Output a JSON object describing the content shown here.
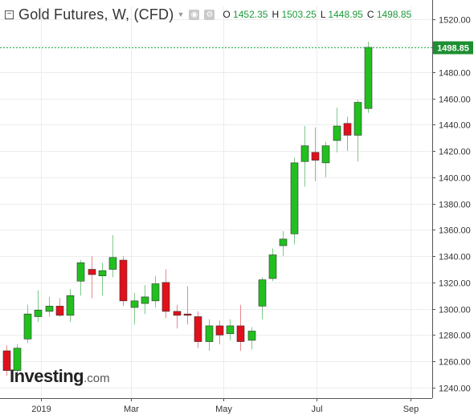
{
  "header": {
    "collapse_symbol": "−",
    "title": "Gold Futures, W,  (CFD)",
    "icons": [
      "visibility-icon",
      "settings-icon"
    ],
    "open_label": "O",
    "open_value": "1452.35",
    "high_label": "H",
    "high_value": "1503.25",
    "low_label": "L",
    "low_value": "1448.95",
    "close_label": "C",
    "close_value": "1498.85"
  },
  "logo": {
    "main": "Investing",
    "suffix": ".com"
  },
  "colors": {
    "up": "#22c01e",
    "down": "#e0111c",
    "grid": "#ececec",
    "axis": "#555555",
    "last_price_line": "#1eae3c",
    "last_price_badge": "#1e8f32"
  },
  "chart_data": {
    "type": "candlestick",
    "title": "Gold Futures, W,  (CFD)",
    "interval": "weekly",
    "y_axis": {
      "position": "right",
      "ticks": [
        1240,
        1260,
        1280,
        1300,
        1320,
        1340,
        1360,
        1380,
        1400,
        1420,
        1440,
        1460,
        1480,
        1500,
        1520
      ],
      "ylim": [
        1232,
        1530
      ]
    },
    "x_axis": {
      "ticks": [
        {
          "label": "2019",
          "date": "2019-01-01"
        },
        {
          "label": "Mar",
          "date": "2019-03-01"
        },
        {
          "label": "May",
          "date": "2019-05-01"
        },
        {
          "label": "Jul",
          "date": "2019-07-01"
        },
        {
          "label": "Sep",
          "date": "2019-09-01"
        }
      ],
      "xlim": [
        "2018-12-05",
        "2019-09-15"
      ]
    },
    "grid": true,
    "last_price": {
      "value": 1498.85,
      "label": "1498.85"
    },
    "candles": [
      {
        "date": "2018-12-09",
        "open": 1268,
        "high": 1272,
        "low": 1249,
        "close": 1253
      },
      {
        "date": "2018-12-16",
        "open": 1253,
        "high": 1273,
        "low": 1251,
        "close": 1270
      },
      {
        "date": "2018-12-23",
        "open": 1277,
        "high": 1303,
        "low": 1274,
        "close": 1296
      },
      {
        "date": "2018-12-30",
        "open": 1294,
        "high": 1314,
        "low": 1290,
        "close": 1299
      },
      {
        "date": "2019-01-06",
        "open": 1298,
        "high": 1309,
        "low": 1294,
        "close": 1302
      },
      {
        "date": "2019-01-13",
        "open": 1302,
        "high": 1308,
        "low": 1294,
        "close": 1295
      },
      {
        "date": "2019-01-20",
        "open": 1295,
        "high": 1315,
        "low": 1290,
        "close": 1310
      },
      {
        "date": "2019-01-27",
        "open": 1321,
        "high": 1337,
        "low": 1310,
        "close": 1335
      },
      {
        "date": "2019-02-03",
        "open": 1330,
        "high": 1340,
        "low": 1308,
        "close": 1326
      },
      {
        "date": "2019-02-10",
        "open": 1325,
        "high": 1335,
        "low": 1310,
        "close": 1329
      },
      {
        "date": "2019-02-17",
        "open": 1330,
        "high": 1356,
        "low": 1324,
        "close": 1339
      },
      {
        "date": "2019-02-24",
        "open": 1337,
        "high": 1340,
        "low": 1302,
        "close": 1306
      },
      {
        "date": "2019-03-03",
        "open": 1301,
        "high": 1312,
        "low": 1288,
        "close": 1306
      },
      {
        "date": "2019-03-10",
        "open": 1304,
        "high": 1318,
        "low": 1296,
        "close": 1309
      },
      {
        "date": "2019-03-17",
        "open": 1306,
        "high": 1325,
        "low": 1301,
        "close": 1319
      },
      {
        "date": "2019-03-24",
        "open": 1320,
        "high": 1330,
        "low": 1293,
        "close": 1298
      },
      {
        "date": "2019-03-31",
        "open": 1298,
        "high": 1303,
        "low": 1285,
        "close": 1295
      },
      {
        "date": "2019-04-07",
        "open": 1296,
        "high": 1317,
        "low": 1288,
        "close": 1295
      },
      {
        "date": "2019-04-14",
        "open": 1294,
        "high": 1298,
        "low": 1270,
        "close": 1275
      },
      {
        "date": "2019-04-21",
        "open": 1275,
        "high": 1292,
        "low": 1268,
        "close": 1287
      },
      {
        "date": "2019-04-28",
        "open": 1287,
        "high": 1291,
        "low": 1273,
        "close": 1280
      },
      {
        "date": "2019-05-05",
        "open": 1281,
        "high": 1292,
        "low": 1276,
        "close": 1287
      },
      {
        "date": "2019-05-12",
        "open": 1287,
        "high": 1303,
        "low": 1268,
        "close": 1275
      },
      {
        "date": "2019-05-19",
        "open": 1276,
        "high": 1286,
        "low": 1269,
        "close": 1283
      },
      {
        "date": "2019-05-26",
        "open": 1302,
        "high": 1324,
        "low": 1292,
        "close": 1322
      },
      {
        "date": "2019-06-02",
        "open": 1323,
        "high": 1346,
        "low": 1321,
        "close": 1341
      },
      {
        "date": "2019-06-09",
        "open": 1348,
        "high": 1359,
        "low": 1340,
        "close": 1353
      },
      {
        "date": "2019-06-16",
        "open": 1357,
        "high": 1415,
        "low": 1349,
        "close": 1411
      },
      {
        "date": "2019-06-23",
        "open": 1412,
        "high": 1439,
        "low": 1393,
        "close": 1424
      },
      {
        "date": "2019-06-30",
        "open": 1419,
        "high": 1438,
        "low": 1397,
        "close": 1413
      },
      {
        "date": "2019-07-07",
        "open": 1411,
        "high": 1427,
        "low": 1400,
        "close": 1424
      },
      {
        "date": "2019-07-14",
        "open": 1428,
        "high": 1453,
        "low": 1419,
        "close": 1439
      },
      {
        "date": "2019-07-21",
        "open": 1441,
        "high": 1446,
        "low": 1420,
        "close": 1432
      },
      {
        "date": "2019-07-28",
        "open": 1432,
        "high": 1459,
        "low": 1412,
        "close": 1457
      },
      {
        "date": "2019-08-04",
        "open": 1452.35,
        "high": 1503.25,
        "low": 1448.95,
        "close": 1498.85
      }
    ]
  }
}
